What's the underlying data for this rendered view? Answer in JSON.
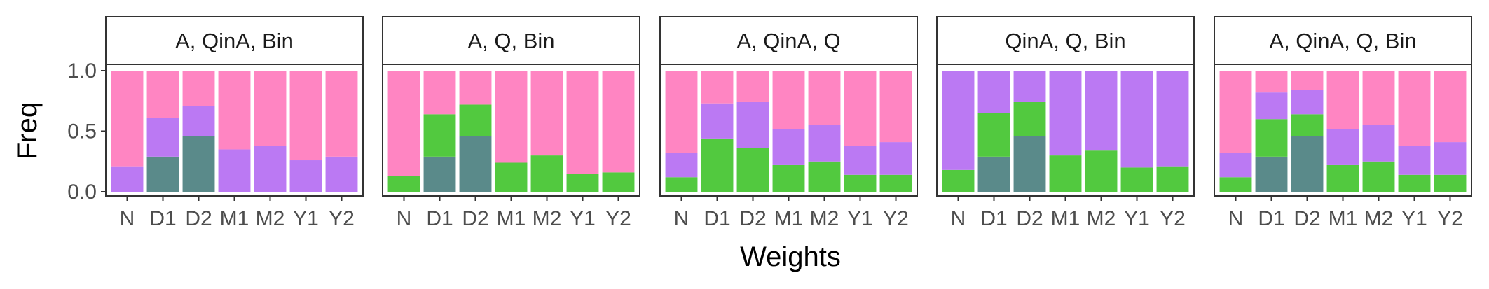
{
  "chart_data": {
    "type": "bar",
    "stacked": true,
    "xlabel": "Weights",
    "ylabel": "Freq",
    "ylim": [
      0,
      1.0
    ],
    "yticks": [
      "0.0",
      "0.5",
      "1.0"
    ],
    "categories": [
      "N",
      "D1",
      "D2",
      "M1",
      "M2",
      "Y1",
      "Y2"
    ],
    "colors": {
      "bottom": "#5a8a8a",
      "green": "#52c93f",
      "purple": "#bb79f3",
      "pink": "#ff85c2"
    },
    "panels": [
      {
        "title": "A, QinA, Bin",
        "series": [
          {
            "color": "#5a8a8a",
            "values": [
              0,
              0.29,
              0.46,
              0,
              0,
              0,
              0
            ]
          },
          {
            "color": "#52c93f",
            "values": [
              0,
              0,
              0,
              0,
              0,
              0,
              0
            ]
          },
          {
            "color": "#bb79f3",
            "values": [
              0.21,
              0.32,
              0.25,
              0.35,
              0.38,
              0.26,
              0.29
            ]
          },
          {
            "color": "#ff85c2",
            "values": [
              0.79,
              0.39,
              0.29,
              0.65,
              0.62,
              0.74,
              0.71
            ]
          }
        ]
      },
      {
        "title": "A, Q, Bin",
        "series": [
          {
            "color": "#5a8a8a",
            "values": [
              0,
              0.29,
              0.46,
              0,
              0,
              0,
              0
            ]
          },
          {
            "color": "#52c93f",
            "values": [
              0.13,
              0.35,
              0.26,
              0.24,
              0.3,
              0.15,
              0.16
            ]
          },
          {
            "color": "#bb79f3",
            "values": [
              0,
              0,
              0,
              0,
              0,
              0,
              0
            ]
          },
          {
            "color": "#ff85c2",
            "values": [
              0.87,
              0.36,
              0.28,
              0.76,
              0.7,
              0.85,
              0.84
            ]
          }
        ]
      },
      {
        "title": "A, QinA, Q",
        "series": [
          {
            "color": "#5a8a8a",
            "values": [
              0,
              0,
              0,
              0,
              0,
              0,
              0
            ]
          },
          {
            "color": "#52c93f",
            "values": [
              0.12,
              0.44,
              0.36,
              0.22,
              0.25,
              0.14,
              0.14
            ]
          },
          {
            "color": "#bb79f3",
            "values": [
              0.2,
              0.29,
              0.38,
              0.3,
              0.3,
              0.24,
              0.27
            ]
          },
          {
            "color": "#ff85c2",
            "values": [
              0.68,
              0.27,
              0.26,
              0.48,
              0.45,
              0.62,
              0.59
            ]
          }
        ]
      },
      {
        "title": "QinA, Q, Bin",
        "series": [
          {
            "color": "#5a8a8a",
            "values": [
              0,
              0.29,
              0.46,
              0,
              0,
              0,
              0
            ]
          },
          {
            "color": "#52c93f",
            "values": [
              0.18,
              0.36,
              0.28,
              0.3,
              0.34,
              0.2,
              0.21
            ]
          },
          {
            "color": "#bb79f3",
            "values": [
              0.82,
              0.35,
              0.26,
              0.7,
              0.66,
              0.8,
              0.79
            ]
          },
          {
            "color": "#ff85c2",
            "values": [
              0,
              0,
              0,
              0,
              0,
              0,
              0
            ]
          }
        ]
      },
      {
        "title": "A, QinA, Q, Bin",
        "series": [
          {
            "color": "#5a8a8a",
            "values": [
              0,
              0.29,
              0.46,
              0,
              0,
              0,
              0
            ]
          },
          {
            "color": "#52c93f",
            "values": [
              0.12,
              0.31,
              0.18,
              0.22,
              0.25,
              0.14,
              0.14
            ]
          },
          {
            "color": "#bb79f3",
            "values": [
              0.2,
              0.22,
              0.2,
              0.3,
              0.3,
              0.24,
              0.27
            ]
          },
          {
            "color": "#ff85c2",
            "values": [
              0.68,
              0.18,
              0.16,
              0.48,
              0.45,
              0.62,
              0.59
            ]
          }
        ]
      }
    ]
  }
}
